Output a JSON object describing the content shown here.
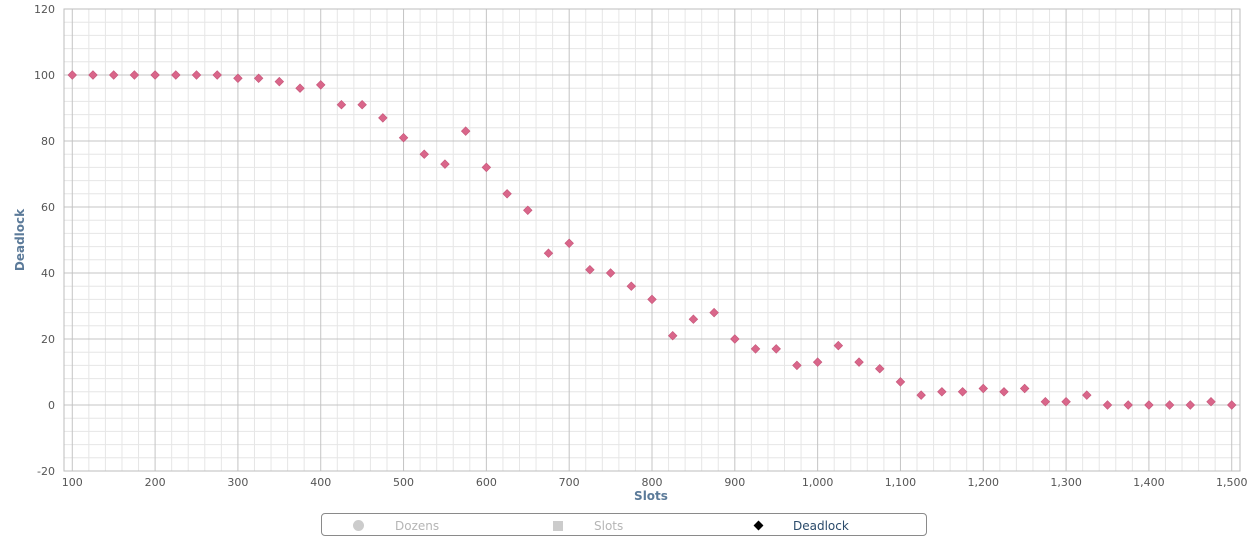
{
  "chart_data": {
    "type": "scatter",
    "title": "",
    "xlabel": "Slots",
    "ylabel": "Deadlock",
    "xlim": [
      90,
      1510
    ],
    "ylim": [
      -20,
      120
    ],
    "x_ticks": [
      "100",
      "200",
      "300",
      "400",
      "500",
      "600",
      "700",
      "800",
      "900",
      "1,000",
      "1,100",
      "1,200",
      "1,300",
      "1,400",
      "1,500"
    ],
    "y_ticks": [
      "120",
      "100",
      "80",
      "60",
      "40",
      "20",
      "0",
      "-20"
    ],
    "grid": true,
    "legend_position": "bottom",
    "series": [
      {
        "name": "Deadlock",
        "color": "#d9668a",
        "marker": "diamond",
        "x": [
          100,
          125,
          150,
          175,
          200,
          225,
          250,
          275,
          300,
          325,
          350,
          375,
          400,
          425,
          450,
          475,
          500,
          525,
          550,
          575,
          600,
          625,
          650,
          675,
          700,
          725,
          750,
          775,
          800,
          825,
          850,
          875,
          900,
          925,
          950,
          975,
          1000,
          1025,
          1050,
          1075,
          1100,
          1125,
          1150,
          1175,
          1200,
          1225,
          1250,
          1275,
          1300,
          1325,
          1350,
          1375,
          1400,
          1425,
          1450,
          1475,
          1500
        ],
        "y": [
          100,
          100,
          100,
          100,
          100,
          100,
          100,
          100,
          99,
          99,
          98,
          96,
          97,
          91,
          91,
          87,
          81,
          76,
          73,
          83,
          72,
          64,
          59,
          46,
          49,
          41,
          40,
          36,
          32,
          21,
          26,
          28,
          20,
          17,
          17,
          12,
          13,
          18,
          13,
          11,
          7,
          3,
          4,
          4,
          5,
          4,
          5,
          1,
          1,
          3,
          0,
          0,
          0,
          0,
          0,
          1,
          0
        ]
      }
    ]
  },
  "legend": {
    "items": [
      {
        "label": "Dozens",
        "icon": "circle-icon",
        "active": false
      },
      {
        "label": "Slots",
        "icon": "square-icon",
        "active": false
      },
      {
        "label": "Deadlock",
        "icon": "diamond-icon",
        "active": true
      }
    ]
  }
}
